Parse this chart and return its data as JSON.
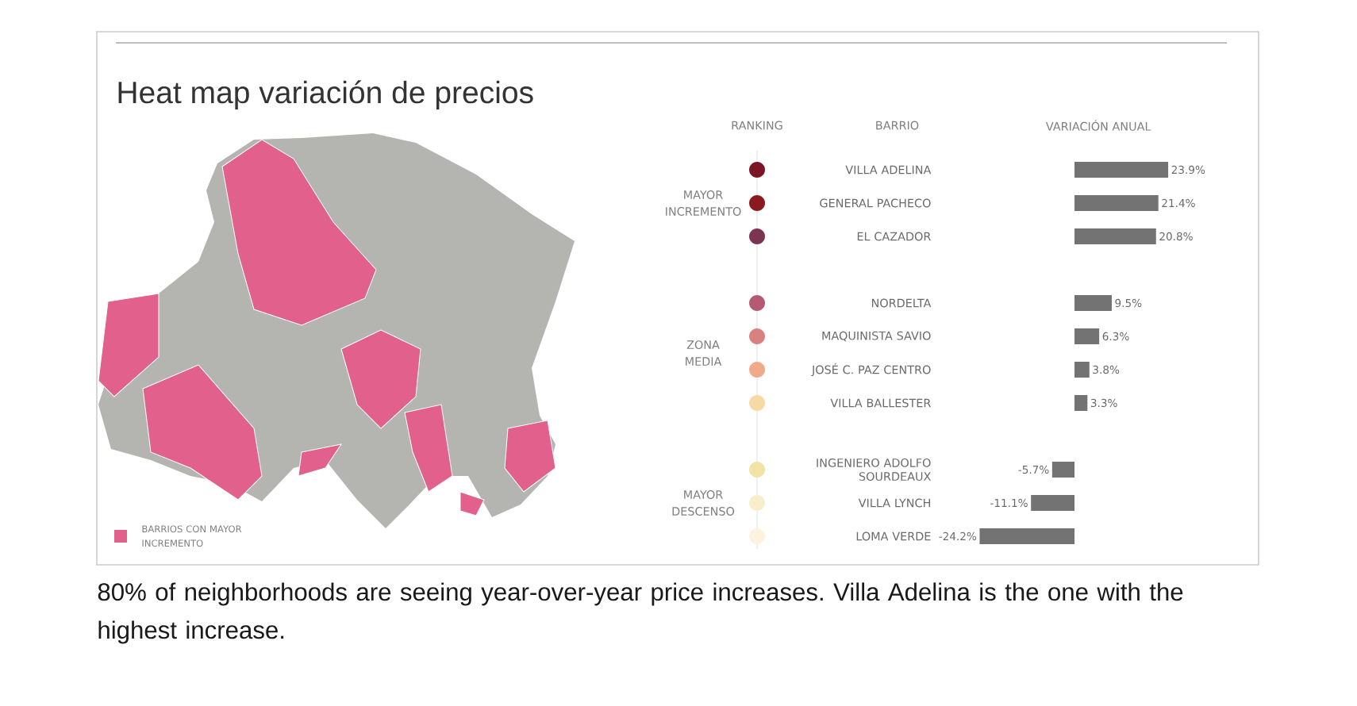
{
  "chart_data": {
    "type": "bar",
    "orientation": "horizontal",
    "title": "Heat map variación de precios",
    "xlabel": "VARIACIÓN ANUAL",
    "ylabel": "BARRIO",
    "categories": [
      "VILLA ADELINA",
      "GENERAL PACHECO",
      "EL CAZADOR",
      null,
      "NORDELTA",
      "MAQUINISTA SAVIO",
      "JOSÉ C. PAZ CENTRO",
      "VILLA BALLESTER",
      null,
      "INGENIERO ADOLFO SOURDEAUX",
      "VILLA LYNCH",
      "LOMA VERDE"
    ],
    "values": [
      23.9,
      21.4,
      20.8,
      null,
      9.5,
      6.3,
      3.8,
      3.3,
      null,
      -5.7,
      -11.1,
      -24.2
    ],
    "value_labels": [
      "23.9%",
      "21.4%",
      "20.8%",
      null,
      "9.5%",
      "6.3%",
      "3.8%",
      "3.3%",
      null,
      "-5.7%",
      "-11.1%",
      "-24.2%"
    ],
    "color": "#737373",
    "annotations": [
      "RANKING",
      "MAYOR INCREMENTO",
      "ZONA MEDIA",
      "MAYOR DESCENSO",
      "BARRIOS CON MAYOR INCREMENTO",
      "80% of neighborhoods are seeing year-over-year price increases. Villa Adelina is the one with the highest increase."
    ]
  }
}
